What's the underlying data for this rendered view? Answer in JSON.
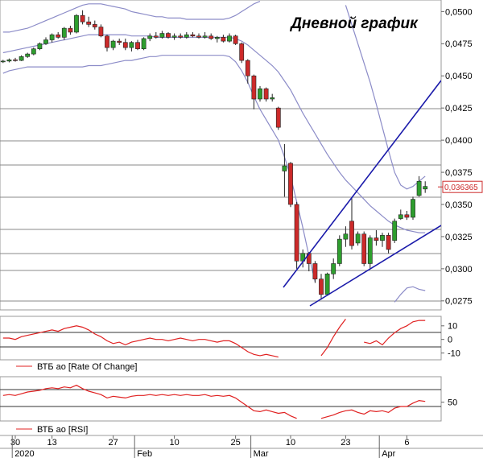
{
  "chart_data": [
    {
      "type": "candlestick",
      "title": "Дневной график",
      "categories": [
        null,
        null,
        "30",
        null,
        null,
        null,
        null,
        null,
        "13",
        null,
        null,
        null,
        null,
        null,
        null,
        null,
        null,
        null,
        "27",
        null,
        null,
        null,
        null,
        null,
        null,
        null,
        null,
        null,
        "10",
        null,
        null,
        null,
        null,
        null,
        null,
        null,
        null,
        null,
        "25",
        null,
        null,
        null,
        null,
        null,
        null,
        null,
        null,
        "10",
        null,
        null,
        null,
        null,
        null,
        null,
        null,
        null,
        "23",
        null,
        null,
        null,
        null,
        null,
        null,
        null,
        null,
        null,
        "6",
        null,
        null,
        null
      ],
      "months": [
        null,
        null,
        "2020",
        null,
        null,
        null,
        null,
        null,
        null,
        null,
        null,
        null,
        null,
        null,
        null,
        null,
        null,
        null,
        null,
        null,
        null,
        null,
        "Feb",
        null,
        null,
        null,
        null,
        null,
        null,
        null,
        null,
        null,
        null,
        null,
        null,
        null,
        null,
        null,
        null,
        null,
        null,
        "Mar",
        null,
        null,
        null,
        null,
        null,
        null,
        null,
        null,
        null,
        null,
        null,
        null,
        null,
        null,
        null,
        null,
        null,
        null,
        null,
        null,
        "Apr",
        null,
        null,
        null,
        null,
        null,
        null,
        null
      ],
      "open": [
        0.0461,
        0.04615,
        0.04625,
        0.0462,
        0.0465,
        0.0467,
        0.0471,
        0.0475,
        0.0478,
        0.0482,
        0.048,
        0.0487,
        0.0484,
        0.0497,
        0.0492,
        0.049,
        0.0488,
        0.0481,
        0.0472,
        0.0477,
        0.0476,
        0.0472,
        0.0476,
        0.0471,
        0.0479,
        0.0481,
        0.048,
        0.0483,
        0.048,
        0.0481,
        0.048,
        0.0482,
        0.0481,
        0.048,
        0.0481,
        0.0479,
        0.048,
        0.0477,
        0.0481,
        0.0475,
        0.0462,
        0.045,
        0.0432,
        0.044,
        0.0432,
        0.0425,
        0.0376,
        0.0382,
        0.035,
        0.0306,
        0.0312,
        0.0304,
        0.0292,
        0.028,
        0.0296,
        0.0304,
        0.0323,
        0.0337,
        0.032,
        0.0327,
        0.0304,
        0.0324,
        0.0322,
        0.0326,
        0.0322,
        0.0339,
        0.0342,
        0.034,
        0.0357,
        0.0362
      ],
      "high": [
        0.04625,
        0.04635,
        0.0464,
        0.0466,
        0.0468,
        0.0472,
        0.0476,
        0.048,
        0.0483,
        0.0484,
        0.0488,
        0.0489,
        0.0498,
        0.0501,
        0.0496,
        0.0493,
        0.049,
        0.0482,
        0.0478,
        0.0479,
        0.0479,
        0.0477,
        0.0478,
        0.048,
        0.0483,
        0.0484,
        0.0485,
        0.0484,
        0.0483,
        0.0483,
        0.0484,
        0.0484,
        0.0483,
        0.0484,
        0.0483,
        0.0481,
        0.0482,
        0.0483,
        0.0482,
        0.0476,
        0.0463,
        0.0451,
        0.0442,
        0.0441,
        0.0436,
        0.0426,
        0.0397,
        0.0383,
        0.0352,
        0.0315,
        0.0313,
        0.0306,
        0.0296,
        0.0297,
        0.0308,
        0.0326,
        0.0333,
        0.0355,
        0.0329,
        0.0329,
        0.0326,
        0.033,
        0.0328,
        0.0328,
        0.0339,
        0.0346,
        0.0345,
        0.0356,
        0.0372,
        0.0368
      ],
      "low": [
        0.046,
        0.04605,
        0.0461,
        0.04615,
        0.0464,
        0.0466,
        0.047,
        0.0474,
        0.0476,
        0.0479,
        0.0478,
        0.0482,
        0.0483,
        0.049,
        0.0488,
        0.0486,
        0.048,
        0.0469,
        0.047,
        0.0474,
        0.047,
        0.0469,
        0.047,
        0.047,
        0.0477,
        0.0479,
        0.0479,
        0.0479,
        0.0478,
        0.0479,
        0.0479,
        0.048,
        0.0479,
        0.0479,
        0.0478,
        0.0476,
        0.0476,
        0.0476,
        0.0474,
        0.046,
        0.0444,
        0.0424,
        0.043,
        0.043,
        0.043,
        0.0408,
        0.0356,
        0.0348,
        0.03,
        0.0301,
        0.0298,
        0.0289,
        0.0276,
        0.0279,
        0.0292,
        0.0302,
        0.0317,
        0.0315,
        0.0318,
        0.0302,
        0.03,
        0.0318,
        0.0317,
        0.0312,
        0.032,
        0.0338,
        0.0338,
        0.0338,
        0.0356,
        0.0359
      ],
      "close": [
        0.04615,
        0.04625,
        0.0462,
        0.0465,
        0.0467,
        0.0471,
        0.0475,
        0.0478,
        0.0482,
        0.048,
        0.0487,
        0.0484,
        0.0497,
        0.0492,
        0.049,
        0.0488,
        0.0481,
        0.0472,
        0.0477,
        0.0476,
        0.0472,
        0.0476,
        0.0471,
        0.0479,
        0.0481,
        0.048,
        0.0483,
        0.048,
        0.0481,
        0.048,
        0.0482,
        0.0481,
        0.048,
        0.0481,
        0.0479,
        0.048,
        0.0477,
        0.0481,
        0.0475,
        0.0462,
        0.045,
        0.0432,
        0.044,
        0.0432,
        0.0433,
        0.041,
        0.038,
        0.035,
        0.0306,
        0.0312,
        0.0304,
        0.0292,
        0.028,
        0.0296,
        0.0304,
        0.0323,
        0.0327,
        0.0318,
        0.0327,
        0.0304,
        0.0324,
        0.0322,
        0.0326,
        0.0315,
        0.0337,
        0.0342,
        0.034,
        0.0354,
        0.0368,
        0.0364
      ],
      "up_color": "#2e9e2e",
      "down_color": "#cc2a2a",
      "bands": {
        "color": "#8c8cc8",
        "upper": [
          0.0484,
          0.0484,
          0.0485,
          0.0486,
          0.0487,
          0.0489,
          0.0491,
          0.0493,
          0.0495,
          0.0497,
          0.0499,
          0.0501,
          0.0503,
          0.0505,
          0.0506,
          0.0506,
          0.0506,
          0.0505,
          0.0504,
          0.0503,
          0.0502,
          0.05,
          0.0499,
          0.0498,
          0.0497,
          0.0496,
          0.0496,
          0.0495,
          0.0495,
          0.0495,
          0.0494,
          0.0494,
          0.0494,
          0.0494,
          0.0494,
          0.0494,
          0.0494,
          0.0495,
          0.0497,
          0.05,
          0.0503,
          0.0506,
          0.0508,
          null,
          null,
          null,
          null,
          null,
          null,
          null,
          null,
          null,
          null,
          null,
          null,
          null,
          0.0505,
          0.049,
          0.0475,
          0.046,
          0.0445,
          0.0428,
          0.041,
          0.0392,
          0.0375,
          0.0365,
          0.0362,
          0.0364,
          0.0368,
          0.0372
        ],
        "middle": [
          0.0468,
          0.0469,
          0.047,
          0.0471,
          0.0472,
          0.0473,
          0.0474,
          0.0475,
          0.0476,
          0.0477,
          0.0478,
          0.0479,
          0.048,
          0.0481,
          0.0482,
          0.0482,
          0.0482,
          0.0482,
          0.0482,
          0.0482,
          0.0482,
          0.0481,
          0.0481,
          0.0481,
          0.0481,
          0.048,
          0.048,
          0.048,
          0.048,
          0.048,
          0.048,
          0.048,
          0.048,
          0.048,
          0.048,
          0.048,
          0.048,
          0.048,
          0.0479,
          0.0477,
          0.0474,
          0.047,
          0.0466,
          0.0462,
          0.0458,
          0.0453,
          0.0446,
          0.0439,
          0.043,
          0.0421,
          0.0413,
          0.0405,
          0.0397,
          0.0389,
          0.0382,
          0.0375,
          0.0369,
          0.0364,
          0.0359,
          0.0354,
          0.0349,
          0.0345,
          0.0341,
          0.0337,
          0.0334,
          0.0332,
          0.033,
          0.0329,
          0.0328,
          0.0328
        ],
        "lower": [
          0.0452,
          0.0454,
          0.0455,
          0.0456,
          0.0457,
          0.0457,
          0.0457,
          0.0457,
          0.0457,
          0.0457,
          0.0457,
          0.0457,
          0.0457,
          0.0457,
          0.0458,
          0.0458,
          0.0458,
          0.0459,
          0.046,
          0.0461,
          0.0462,
          0.0462,
          0.0463,
          0.0464,
          0.0465,
          0.0465,
          0.0466,
          0.0466,
          0.0466,
          0.0466,
          0.0466,
          0.0466,
          0.0466,
          0.0466,
          0.0466,
          0.0466,
          0.0466,
          0.0465,
          0.0461,
          0.0454,
          0.0445,
          0.0434,
          0.0424,
          0.0416,
          0.0408,
          0.04,
          0.0387,
          0.0372,
          0.0352,
          0.0332,
          0.031,
          0.029,
          null,
          null,
          null,
          null,
          null,
          null,
          null,
          null,
          null,
          null,
          null,
          null,
          0.0274,
          0.028,
          0.0285,
          0.0286,
          0.0284,
          0.0283
        ]
      },
      "ylim": [
        0.0268,
        0.0509
      ],
      "yticks": [
        {
          "value": 0.0275,
          "label": "0,0275"
        },
        {
          "value": 0.03,
          "label": "0,0300"
        },
        {
          "value": 0.0325,
          "label": "0,0325"
        },
        {
          "value": 0.035,
          "label": "0,0350"
        },
        {
          "value": 0.0375,
          "label": "0,0375"
        },
        {
          "value": 0.04,
          "label": "0,0400"
        },
        {
          "value": 0.0425,
          "label": "0,0425"
        },
        {
          "value": 0.045,
          "label": "0,0450"
        },
        {
          "value": 0.0475,
          "label": "0,0475"
        },
        {
          "value": 0.05,
          "label": "0,0500"
        }
      ],
      "last_price": 0.036365,
      "last_price_label": "0,036365"
    },
    {
      "type": "line",
      "series": [
        {
          "name": "ВТБ ао [Rate Of Change]",
          "color": "#e02020",
          "values": [
            1,
            1,
            0,
            2,
            3,
            4,
            5,
            6,
            7,
            6,
            8,
            9,
            10,
            9,
            7,
            4,
            2,
            -1,
            -3,
            -2,
            -4,
            -2,
            -1,
            0,
            1,
            0,
            0,
            -1,
            0,
            1,
            0,
            -1,
            0,
            0,
            -1,
            -2,
            -1,
            -1,
            -3,
            -6,
            -9,
            -11,
            -12,
            -11,
            -12,
            -13,
            null,
            null,
            null,
            null,
            null,
            null,
            -12,
            -6,
            2,
            9,
            15,
            null,
            null,
            -2,
            -3,
            -1,
            -4,
            1,
            5,
            8,
            10,
            13,
            14,
            14
          ]
        }
      ],
      "ylim": [
        -15,
        17
      ],
      "yticks": [
        10,
        0,
        -10
      ]
    },
    {
      "type": "line",
      "series": [
        {
          "name": "ВТБ ао [RSI]",
          "color": "#e02020",
          "values": [
            58,
            59,
            58,
            60,
            62,
            63,
            64,
            66,
            67,
            66,
            68,
            67,
            70,
            66,
            63,
            61,
            59,
            55,
            57,
            56,
            55,
            57,
            58,
            58,
            59,
            58,
            59,
            58,
            59,
            58,
            59,
            58,
            58,
            59,
            57,
            58,
            57,
            58,
            55,
            50,
            45,
            40,
            39,
            41,
            39,
            37,
            38,
            34,
            31,
            null,
            null,
            null,
            31,
            33,
            35,
            38,
            40,
            41,
            38,
            36,
            40,
            39,
            40,
            38,
            43,
            45,
            45,
            49,
            52,
            51
          ]
        }
      ],
      "ylim": [
        28,
        80
      ],
      "yticks": [
        50
      ]
    }
  ]
}
